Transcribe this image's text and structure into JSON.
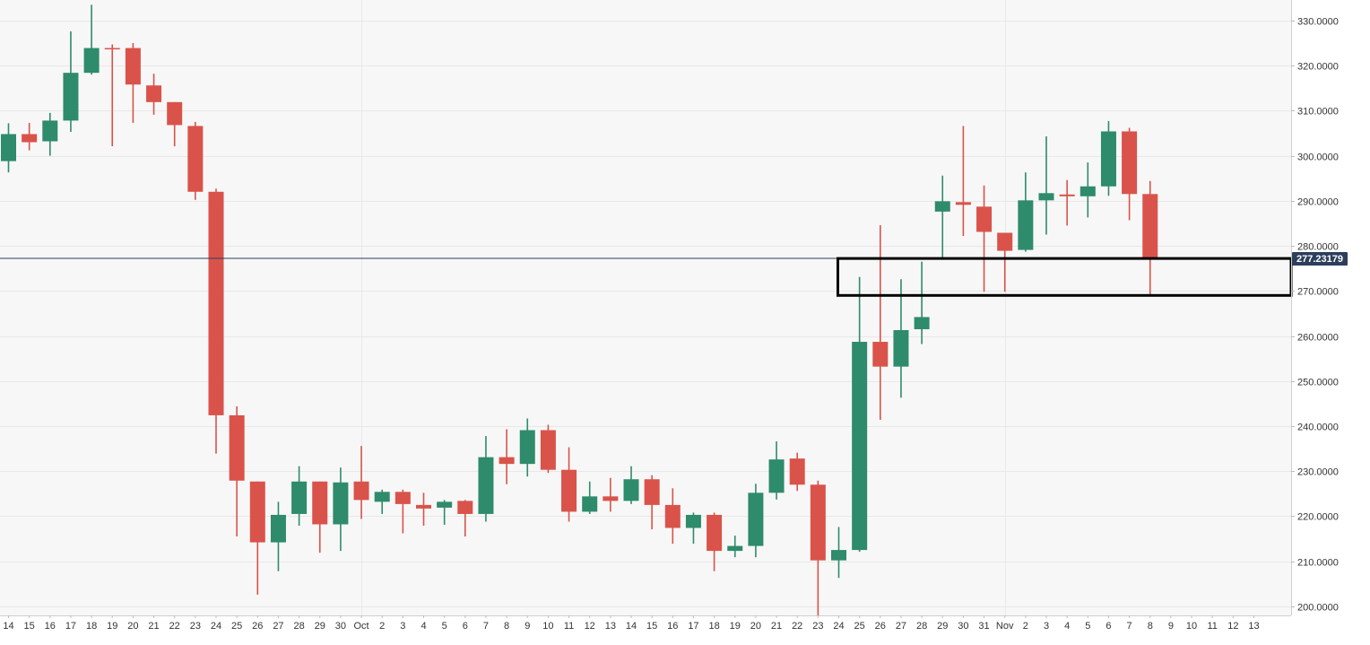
{
  "chart_data": {
    "type": "candlestick",
    "title": "",
    "xlabel": "",
    "ylabel": "",
    "ylim": [
      198,
      334
    ],
    "y_ticks": [
      "330.0000",
      "320.0000",
      "310.0000",
      "300.0000",
      "290.0000",
      "280.0000",
      "270.0000",
      "260.0000",
      "250.0000",
      "240.0000",
      "230.0000",
      "220.0000",
      "210.0000",
      "200.0000"
    ],
    "y_tick_values": [
      330,
      320,
      310,
      300,
      290,
      280,
      270,
      260,
      250,
      240,
      230,
      220,
      210,
      200
    ],
    "x_labels": [
      "14",
      "15",
      "16",
      "17",
      "18",
      "19",
      "20",
      "21",
      "22",
      "23",
      "24",
      "25",
      "26",
      "27",
      "28",
      "29",
      "30",
      "Oct",
      "2",
      "3",
      "4",
      "5",
      "6",
      "7",
      "8",
      "9",
      "10",
      "11",
      "12",
      "13",
      "14",
      "15",
      "16",
      "17",
      "18",
      "19",
      "20",
      "21",
      "22",
      "23",
      "24",
      "25",
      "26",
      "27",
      "28",
      "29",
      "30",
      "31",
      "Nov",
      "2",
      "3",
      "4",
      "5",
      "6",
      "7",
      "8",
      "9",
      "10",
      "11",
      "12",
      "13"
    ],
    "candle_count": 56,
    "candles": [
      {
        "label": "14",
        "open": 298.8,
        "high": 307.2,
        "low": 296.3,
        "close": 304.8
      },
      {
        "label": "15",
        "open": 304.8,
        "high": 307.3,
        "low": 301.2,
        "close": 303.0
      },
      {
        "label": "16",
        "open": 303.2,
        "high": 309.5,
        "low": 300.0,
        "close": 307.8
      },
      {
        "label": "17",
        "open": 307.8,
        "high": 327.6,
        "low": 305.3,
        "close": 318.4
      },
      {
        "label": "18",
        "open": 318.4,
        "high": 333.5,
        "low": 318.0,
        "close": 323.9
      },
      {
        "label": "19",
        "open": 323.9,
        "high": 324.7,
        "low": 302.1,
        "close": 323.7
      },
      {
        "label": "20",
        "open": 323.9,
        "high": 325.0,
        "low": 307.3,
        "close": 315.8
      },
      {
        "label": "21",
        "open": 315.6,
        "high": 318.2,
        "low": 309.1,
        "close": 311.9
      },
      {
        "label": "22",
        "open": 311.9,
        "high": 311.9,
        "low": 302.1,
        "close": 306.8
      },
      {
        "label": "23",
        "open": 306.6,
        "high": 307.5,
        "low": 290.2,
        "close": 292.0
      },
      {
        "label": "24",
        "open": 292.0,
        "high": 292.7,
        "low": 233.9,
        "close": 242.4
      },
      {
        "label": "25",
        "open": 242.4,
        "high": 244.4,
        "low": 215.5,
        "close": 227.9
      },
      {
        "label": "26",
        "open": 227.7,
        "high": 227.7,
        "low": 202.6,
        "close": 214.2
      },
      {
        "label": "27",
        "open": 214.2,
        "high": 223.2,
        "low": 207.8,
        "close": 220.3
      },
      {
        "label": "28",
        "open": 220.5,
        "high": 231.1,
        "low": 217.9,
        "close": 227.7
      },
      {
        "label": "29",
        "open": 227.7,
        "high": 227.7,
        "low": 211.9,
        "close": 218.2
      },
      {
        "label": "30",
        "open": 218.2,
        "high": 230.8,
        "low": 212.3,
        "close": 227.5
      },
      {
        "label": "Oct",
        "open": 227.7,
        "high": 235.6,
        "low": 219.4,
        "close": 223.6
      },
      {
        "label": "2",
        "open": 223.2,
        "high": 225.9,
        "low": 220.5,
        "close": 225.4
      },
      {
        "label": "3",
        "open": 225.4,
        "high": 225.9,
        "low": 216.2,
        "close": 222.7
      },
      {
        "label": "4",
        "open": 222.5,
        "high": 225.2,
        "low": 217.9,
        "close": 221.7
      },
      {
        "label": "5",
        "open": 221.9,
        "high": 223.6,
        "low": 218.1,
        "close": 223.2
      },
      {
        "label": "6",
        "open": 223.4,
        "high": 223.6,
        "low": 215.5,
        "close": 220.5
      },
      {
        "label": "7",
        "open": 220.5,
        "high": 237.8,
        "low": 218.8,
        "close": 233.1
      },
      {
        "label": "8",
        "open": 233.1,
        "high": 239.3,
        "low": 227.1,
        "close": 231.6
      },
      {
        "label": "9",
        "open": 231.6,
        "high": 241.7,
        "low": 228.8,
        "close": 239.1
      },
      {
        "label": "10",
        "open": 239.1,
        "high": 240.3,
        "low": 229.6,
        "close": 230.3
      },
      {
        "label": "11",
        "open": 230.3,
        "high": 235.3,
        "low": 218.8,
        "close": 221.0
      },
      {
        "label": "12",
        "open": 221.0,
        "high": 227.7,
        "low": 220.5,
        "close": 224.4
      },
      {
        "label": "13",
        "open": 224.4,
        "high": 228.5,
        "low": 221.0,
        "close": 223.4
      },
      {
        "label": "14",
        "open": 223.4,
        "high": 231.1,
        "low": 222.7,
        "close": 228.2
      },
      {
        "label": "15",
        "open": 228.2,
        "high": 229.1,
        "low": 217.1,
        "close": 222.5
      },
      {
        "label": "16",
        "open": 222.5,
        "high": 226.2,
        "low": 213.9,
        "close": 217.4
      },
      {
        "label": "17",
        "open": 217.4,
        "high": 220.8,
        "low": 213.9,
        "close": 220.3
      },
      {
        "label": "18",
        "open": 220.3,
        "high": 220.8,
        "low": 207.8,
        "close": 212.3
      },
      {
        "label": "19",
        "open": 212.3,
        "high": 215.7,
        "low": 210.9,
        "close": 213.4
      },
      {
        "label": "20",
        "open": 213.4,
        "high": 227.2,
        "low": 210.9,
        "close": 225.2
      },
      {
        "label": "21",
        "open": 225.2,
        "high": 236.6,
        "low": 223.7,
        "close": 232.6
      },
      {
        "label": "22",
        "open": 232.8,
        "high": 234.1,
        "low": 225.6,
        "close": 227.0
      },
      {
        "label": "23",
        "open": 227.0,
        "high": 227.9,
        "low": 198.0,
        "close": 210.2
      },
      {
        "label": "24",
        "open": 210.2,
        "high": 217.6,
        "low": 206.3,
        "close": 212.5
      },
      {
        "label": "25",
        "open": 212.5,
        "high": 273.1,
        "low": 212.1,
        "close": 258.7
      },
      {
        "label": "26",
        "open": 258.7,
        "high": 284.6,
        "low": 241.4,
        "close": 253.2
      },
      {
        "label": "27",
        "open": 253.2,
        "high": 272.6,
        "low": 246.3,
        "close": 261.3
      },
      {
        "label": "28",
        "open": 261.5,
        "high": 276.5,
        "low": 258.2,
        "close": 264.2
      },
      {
        "label": "29",
        "open": 287.6,
        "high": 295.6,
        "low": 277.3,
        "close": 289.9
      },
      {
        "label": "30",
        "open": 289.7,
        "high": 306.6,
        "low": 282.2,
        "close": 289.1
      },
      {
        "label": "31",
        "open": 288.7,
        "high": 293.4,
        "low": 269.8,
        "close": 283.1
      },
      {
        "label": "Nov",
        "open": 282.9,
        "high": 282.9,
        "low": 269.8,
        "close": 278.9
      },
      {
        "label": "2",
        "open": 279.1,
        "high": 296.3,
        "low": 278.7,
        "close": 290.1
      },
      {
        "label": "3",
        "open": 290.1,
        "high": 304.3,
        "low": 282.5,
        "close": 291.7
      },
      {
        "label": "4",
        "open": 291.4,
        "high": 294.6,
        "low": 284.5,
        "close": 291.0
      },
      {
        "label": "5",
        "open": 291.0,
        "high": 298.5,
        "low": 286.3,
        "close": 293.2
      },
      {
        "label": "6",
        "open": 293.2,
        "high": 307.7,
        "low": 291.1,
        "close": 305.4
      },
      {
        "label": "7",
        "open": 305.4,
        "high": 306.2,
        "low": 285.7,
        "close": 291.5
      },
      {
        "label": "8",
        "open": 291.5,
        "high": 294.4,
        "low": 268.9,
        "close": 277.2
      }
    ],
    "current_price": 277.23179,
    "current_price_label": "277.23179",
    "highlight_zone": {
      "from_label_index": 40,
      "y_low": 269.0,
      "y_high": 277.2
    },
    "grid": true,
    "legend": "none",
    "colors": {
      "up": "#2e8b6c",
      "down": "#d9534a",
      "price_line": "#2c3e5c",
      "price_badge": "#2c3e5c",
      "grid": "#e8e8e8",
      "plot_bg": "#f7f7f7",
      "axis_text": "#333333"
    }
  }
}
